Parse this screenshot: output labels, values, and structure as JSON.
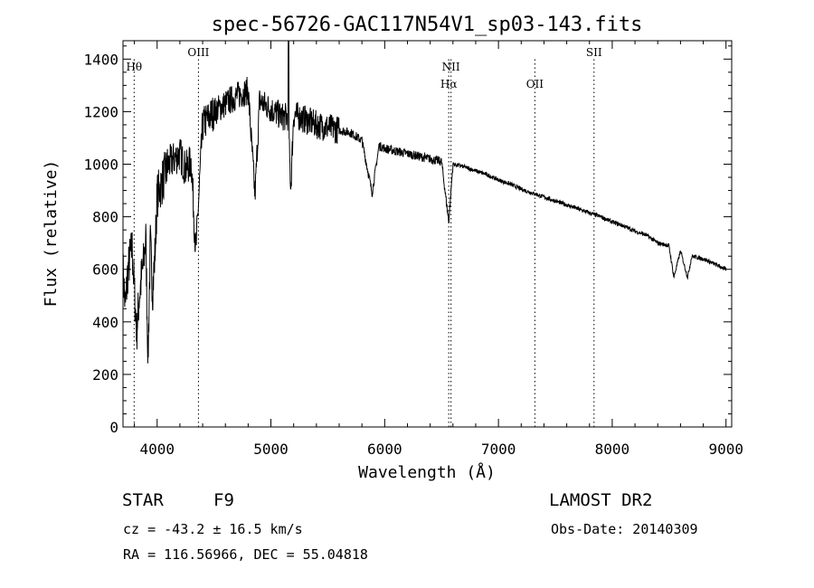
{
  "chart_data": {
    "type": "line",
    "title": "spec-56726-GAC117N54V1_sp03-143.fits",
    "xlabel": "Wavelength (Å)",
    "ylabel": "Flux (relative)",
    "xlim": [
      3700,
      9050
    ],
    "ylim": [
      0,
      1470
    ],
    "xticks": [
      4000,
      5000,
      6000,
      7000,
      8000,
      9000
    ],
    "yticks": [
      0,
      200,
      400,
      600,
      800,
      1000,
      1200,
      1400
    ],
    "grid": false,
    "line_color": "#000000",
    "series": [
      {
        "x": [
          3700,
          3720,
          3740,
          3760,
          3780,
          3800,
          3820,
          3840,
          3860,
          3880,
          3900,
          3920,
          3940,
          3960,
          3980,
          4000,
          4050,
          4100,
          4150,
          4200,
          4250,
          4300,
          4340,
          4400,
          4500,
          4600,
          4700,
          4800,
          4860,
          4900,
          5000,
          5100,
          5150,
          5175,
          5200,
          5300,
          5400,
          5500,
          5600,
          5700,
          5800,
          5890,
          5950,
          6000,
          6100,
          6200,
          6300,
          6400,
          6500,
          6563,
          6600,
          6700,
          6800,
          6900,
          7000,
          7100,
          7200,
          7300,
          7400,
          7500,
          7600,
          7700,
          7800,
          7900,
          8000,
          8100,
          8200,
          8300,
          8400,
          8498,
          8542,
          8600,
          8662,
          8700,
          8800,
          8900,
          9000
        ],
        "values": [
          600,
          450,
          580,
          640,
          680,
          520,
          360,
          480,
          560,
          620,
          720,
          260,
          700,
          520,
          650,
          880,
          940,
          1000,
          1020,
          1040,
          980,
          1010,
          660,
          1150,
          1200,
          1230,
          1260,
          1280,
          880,
          1240,
          1210,
          1180,
          1180,
          910,
          1190,
          1170,
          1150,
          1140,
          1130,
          1120,
          1090,
          890,
          1070,
          1060,
          1050,
          1040,
          1030,
          1020,
          1010,
          780,
          1000,
          990,
          975,
          960,
          940,
          925,
          905,
          890,
          875,
          860,
          845,
          830,
          815,
          800,
          780,
          765,
          745,
          730,
          700,
          690,
          570,
          670,
          570,
          650,
          640,
          620,
          600
        ]
      }
    ],
    "line_annotations": [
      {
        "label": "Hθ",
        "wavelength": 3798,
        "row": 1
      },
      {
        "label": "OIII",
        "wavelength": 4363,
        "row": 0
      },
      {
        "label": "NII",
        "wavelength": 6583,
        "row": 1
      },
      {
        "label": "Hα",
        "wavelength": 6563,
        "row": 2
      },
      {
        "label": "OII",
        "wavelength": 7320,
        "row": 2
      },
      {
        "label": "SII",
        "wavelength": 7840,
        "row": 0
      }
    ]
  },
  "info": {
    "object_class": "STAR",
    "subclass": "F9",
    "survey": "LAMOST DR2",
    "redshift": "cz = -43.2 ± 16.5 km/s",
    "obs_date": "Obs-Date: 20140309",
    "coords": "RA = 116.56966, DEC =  55.04818"
  }
}
